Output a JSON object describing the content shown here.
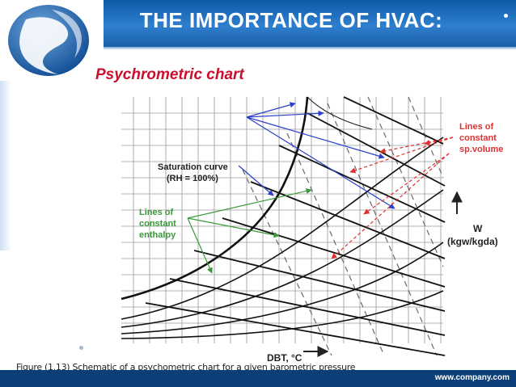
{
  "slide": {
    "title": "THE IMPORTANCE OF HVAC:",
    "subtitle": "Psychrometric chart",
    "caption": "Figure (1.13) Schematic of a psychometric chart for a given barometric pressure",
    "footer_url": "www.company.com"
  },
  "diagram": {
    "saturation_label": [
      "Saturation curve",
      "(RH = 100%)"
    ],
    "enthalpy_label": [
      "Lines of",
      "constant",
      "enthalpy"
    ],
    "volume_label": [
      "Lines of",
      "constant",
      "sp.volume"
    ],
    "w_label": [
      "W",
      "(kgw/kgda)"
    ],
    "dbt_label": "DBT, °C"
  },
  "colors": {
    "header_blue": "#1f6fc0",
    "footer_navy": "#0c3f7a",
    "subtitle_red": "#c8102e",
    "arrow_blue": "#2b3fc9",
    "arrow_green": "#3a9a3a",
    "arrow_red": "#e03030"
  }
}
